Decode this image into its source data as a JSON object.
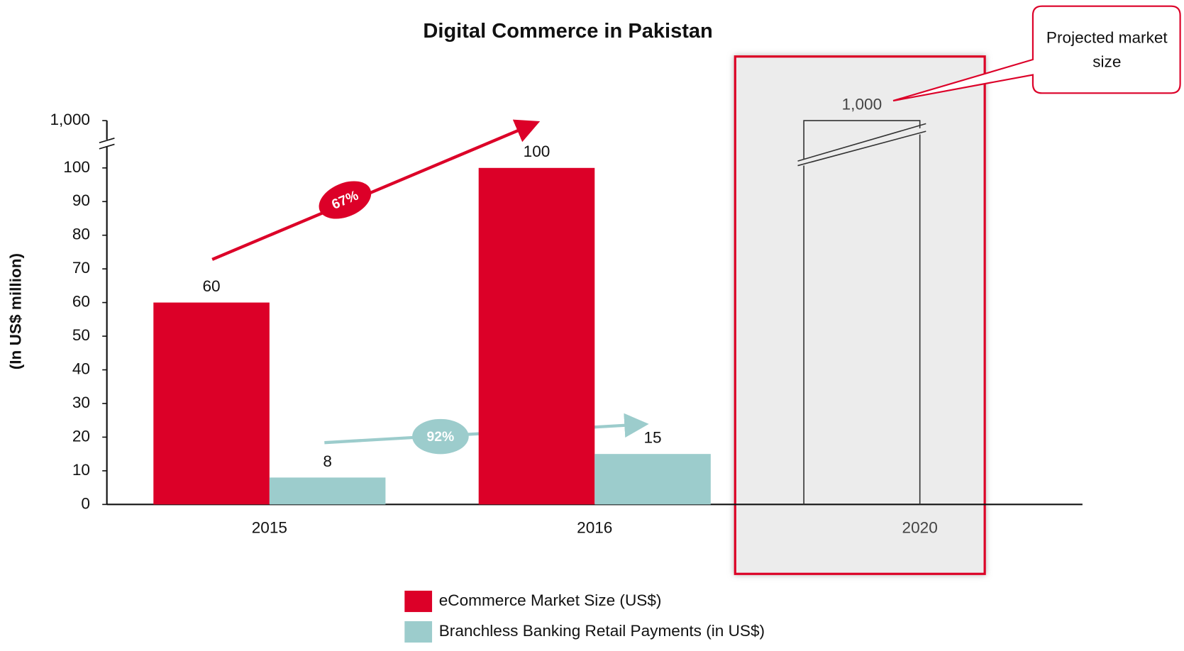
{
  "chart_data": {
    "type": "bar",
    "title": "Digital Commerce in Pakistan",
    "y_label": "(In US$ million)",
    "categories": [
      "2015",
      "2016",
      "2020"
    ],
    "series": [
      {
        "name": "eCommerce Market Size (US$)",
        "color": "#dc0028",
        "values": [
          60,
          100,
          1000
        ],
        "value_labels": [
          "60",
          "100",
          "1,000"
        ]
      },
      {
        "name": "Branchless Banking Retail Payments (in US$)",
        "color": "#9ccccc",
        "values": [
          8,
          15,
          null
        ]
      }
    ],
    "ylim": [
      0,
      1000
    ],
    "axis_break": 100,
    "yticks": [
      0,
      10,
      20,
      30,
      40,
      50,
      60,
      70,
      80,
      90,
      100,
      {
        "value": 1000,
        "label": "1,000"
      }
    ],
    "highlight_index": 2,
    "annotations": [
      {
        "text": "67%"
      },
      {
        "text": "92%"
      },
      {
        "text": "Projected market size"
      }
    ]
  }
}
